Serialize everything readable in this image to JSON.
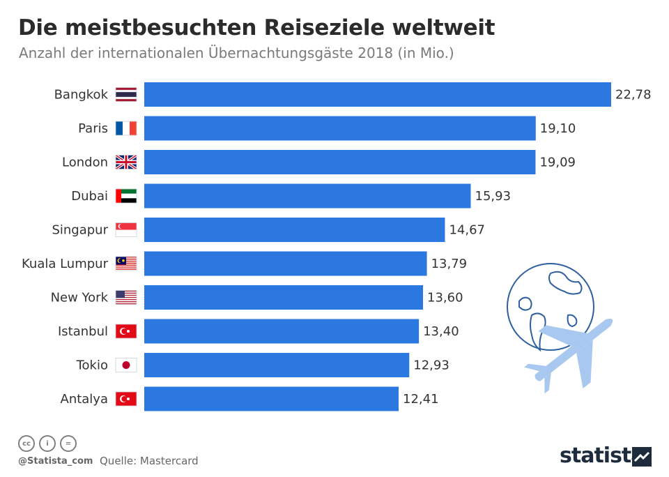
{
  "header": {
    "title": "Die meistbesuchten Reiseziele weltweit",
    "subtitle": "Anzahl der internationalen Übernachtungsgäste 2018 (in Mio.)"
  },
  "chart_data": {
    "type": "bar",
    "orientation": "horizontal",
    "categories": [
      "Bangkok",
      "Paris",
      "London",
      "Dubai",
      "Singapur",
      "Kuala Lumpur",
      "New York",
      "Istanbul",
      "Tokio",
      "Antalya"
    ],
    "values": [
      22.78,
      19.1,
      19.09,
      15.93,
      14.67,
      13.79,
      13.6,
      13.4,
      12.93,
      12.41
    ],
    "value_labels": [
      "22,78",
      "19,10",
      "19,09",
      "15,93",
      "14,67",
      "13,79",
      "13,60",
      "13,40",
      "12,93",
      "12,41"
    ],
    "flags": [
      "thailand-flag",
      "france-flag",
      "uk-flag",
      "uae-flag",
      "singapore-flag",
      "malaysia-flag",
      "usa-flag",
      "turkey-flag",
      "japan-flag",
      "turkey-flag"
    ],
    "bar_color": "#2b78e0",
    "xlim": [
      0,
      22.78
    ],
    "grid": false,
    "legend": "none"
  },
  "illustration": {
    "globe_color": "#2f5f9e",
    "plane_color": "#a9c8f0",
    "icons": [
      "globe-icon",
      "airplane-icon"
    ]
  },
  "footer": {
    "handle": "@Statista_com",
    "source": "Quelle: Mastercard",
    "brand": "statista",
    "license_icons": [
      "cc-icon",
      "by-icon",
      "nd-icon"
    ],
    "license_glyphs": [
      "cc",
      "i",
      "="
    ]
  }
}
